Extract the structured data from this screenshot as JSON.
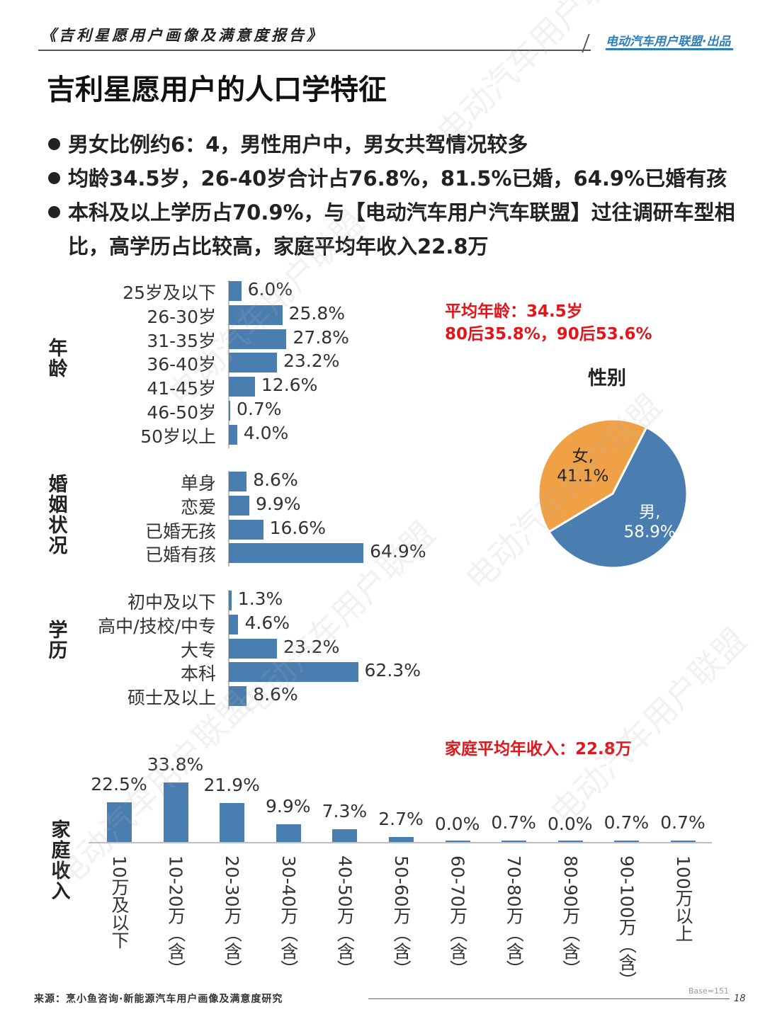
{
  "header": {
    "report_title": "《吉利星愿用户画像及满意度报告》",
    "publisher": "电动汽车用户联盟·出品"
  },
  "page_title": "吉利星愿用户的人口学特征",
  "bullets": [
    "男女比例约6：4，男性用户中，男女共驾情况较多",
    "均龄34.5岁，26-40岁合计占76.8%，81.5%已婚，64.9%已婚有孩",
    "本科及以上学历占70.9%，与【电动汽车用户汽车联盟】过往调研车型相比，高学历占比较高，家庭平均年收入22.8万"
  ],
  "notes": {
    "age_line1": "平均年龄：34.5岁",
    "age_line2": "80后35.8%，90后53.6%",
    "income": "家庭平均年收入：22.8万",
    "note_color": "#e0161c"
  },
  "colors": {
    "bar": "#4a7db0",
    "male": "#4a7db0",
    "female": "#f0a146"
  },
  "chart_data": [
    {
      "type": "bar",
      "orientation": "horizontal",
      "group_label": "年龄",
      "categories": [
        "25岁及以下",
        "26-30岁",
        "31-35岁",
        "36-40岁",
        "41-45岁",
        "46-50岁",
        "50岁以上"
      ],
      "values": [
        6.0,
        25.8,
        27.8,
        23.2,
        12.6,
        0.7,
        4.0
      ],
      "value_labels": [
        "6.0%",
        "25.8%",
        "27.8%",
        "23.2%",
        "12.6%",
        "0.7%",
        "4.0%"
      ]
    },
    {
      "type": "bar",
      "orientation": "horizontal",
      "group_label": "婚姻状况",
      "categories": [
        "单身",
        "恋爱",
        "已婚无孩",
        "已婚有孩"
      ],
      "values": [
        8.6,
        9.9,
        16.6,
        64.9
      ],
      "value_labels": [
        "8.6%",
        "9.9%",
        "16.6%",
        "64.9%"
      ]
    },
    {
      "type": "bar",
      "orientation": "horizontal",
      "group_label": "学历",
      "categories": [
        "初中及以下",
        "高中/技校/中专",
        "大专",
        "本科",
        "硕士及以上"
      ],
      "values": [
        1.3,
        4.6,
        23.2,
        62.3,
        8.6
      ],
      "value_labels": [
        "1.3%",
        "4.6%",
        "23.2%",
        "62.3%",
        "8.6%"
      ]
    },
    {
      "type": "pie",
      "title": "性别",
      "categories": [
        "男",
        "女"
      ],
      "values": [
        58.9,
        41.1
      ],
      "value_labels": [
        "58.9%",
        "41.1%"
      ]
    },
    {
      "type": "bar",
      "orientation": "vertical",
      "group_label": "家庭收入",
      "categories": [
        "10万及以下",
        "10-20万（含）",
        "20-30万（含）",
        "30-40万（含）",
        "40-50万（含）",
        "50-60万（含）",
        "60-70万（含）",
        "70-80万（含）",
        "80-90万（含）",
        "90-100万（含）",
        "100万以上"
      ],
      "values": [
        22.5,
        33.8,
        21.9,
        9.9,
        7.3,
        2.7,
        0.0,
        0.7,
        0.0,
        0.7,
        0.7
      ],
      "value_labels": [
        "22.5%",
        "33.8%",
        "21.9%",
        "9.9%",
        "7.3%",
        "2.7%",
        "0.0%",
        "0.7%",
        "0.0%",
        "0.7%",
        "0.7%"
      ]
    }
  ],
  "footer": {
    "source": "来源：烹小鱼咨询·新能源汽车用户画像及满意度研究",
    "base": "Base=151",
    "page": "18"
  },
  "watermark": "电动汽车用户联盟"
}
